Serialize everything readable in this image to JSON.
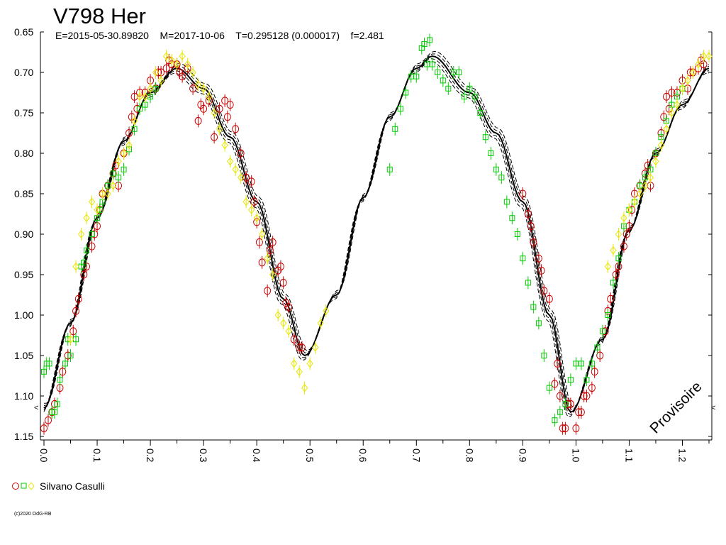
{
  "chart_data": {
    "type": "scatter",
    "title": "V798 Her",
    "subtitle": "E=2015-05-30.89820    M=2017-10-06    T=0.295128 (0.000017)    f=2.481",
    "xlabel": "",
    "ylabel": "",
    "xlim": [
      0.0,
      1.25
    ],
    "ylim": [
      1.15,
      0.65
    ],
    "y_inverted": true,
    "grid": false,
    "x_ticks": [
      "0.0",
      "0.1",
      "0.2",
      "0.3",
      "0.4",
      "0.5",
      "0.6",
      "0.7",
      "0.8",
      "0.9",
      "1.0",
      "1.1",
      "1.2"
    ],
    "y_ticks": [
      "0.65",
      "0.70",
      "0.75",
      "0.80",
      "0.85",
      "0.90",
      "0.95",
      "1.00",
      "1.05",
      "1.10",
      "1.15"
    ],
    "watermark": "Provisoire",
    "edge_marker": "<",
    "legend": {
      "placement": "bottom-left",
      "observer": "Silvano Casulli",
      "symbols": "○□◇"
    },
    "colors": {
      "red": "#cc0000",
      "green": "#00cc00",
      "yellow": "#e6e600",
      "model": "#000000"
    },
    "model_curve": {
      "description": "fitted light curve with dashed uncertainty envelope",
      "phase": [
        0.0,
        0.05,
        0.1,
        0.15,
        0.2,
        0.25,
        0.3,
        0.35,
        0.4,
        0.45,
        0.49,
        0.55,
        0.6,
        0.65,
        0.7,
        0.73,
        0.8,
        0.85,
        0.9,
        0.95,
        0.99,
        1.05,
        1.1,
        1.15,
        1.2,
        1.25
      ],
      "mag": [
        1.115,
        1.01,
        0.88,
        0.785,
        0.725,
        0.695,
        0.72,
        0.78,
        0.86,
        0.98,
        1.05,
        0.975,
        0.855,
        0.755,
        0.695,
        0.68,
        0.725,
        0.775,
        0.86,
        1.0,
        1.12,
        1.03,
        0.895,
        0.8,
        0.74,
        0.695
      ]
    },
    "series": [
      {
        "name": "red",
        "symbol": "circle",
        "color": "#cc0000",
        "x": [
          0.0,
          0.008,
          0.015,
          0.02,
          0.03,
          0.035,
          0.045,
          0.055,
          0.06,
          0.065,
          0.075,
          0.08,
          0.09,
          0.095,
          0.1,
          0.105,
          0.11,
          0.12,
          0.13,
          0.135,
          0.14,
          0.15,
          0.16,
          0.165,
          0.17,
          0.175,
          0.18,
          0.19,
          0.2,
          0.21,
          0.215,
          0.22,
          0.23,
          0.235,
          0.24,
          0.25,
          0.255,
          0.26,
          0.27,
          0.28,
          0.29,
          0.295,
          0.3,
          0.31,
          0.32,
          0.33,
          0.34,
          0.345,
          0.35,
          0.36,
          0.37,
          0.38,
          0.39,
          0.395,
          0.4,
          0.405,
          0.41,
          0.42,
          0.425,
          0.43,
          0.44,
          0.445,
          0.45,
          0.455,
          0.46,
          0.47,
          0.48,
          0.485,
          0.9,
          0.91,
          0.915,
          0.92,
          0.93,
          0.935,
          0.94,
          0.95,
          0.96,
          0.965,
          0.97,
          0.975,
          0.98,
          0.985,
          0.99,
          1.0,
          1.005,
          1.01,
          1.015,
          1.02,
          1.03,
          1.035,
          1.045,
          1.055,
          1.06,
          1.065,
          1.075,
          1.08,
          1.09,
          1.095,
          1.1,
          1.105,
          1.11,
          1.12,
          1.13,
          1.135,
          1.14,
          1.15,
          1.16,
          1.165,
          1.17,
          1.175,
          1.18,
          1.19,
          1.2,
          1.21,
          1.215,
          1.22,
          1.23,
          1.235,
          1.24
        ],
        "y": [
          1.14,
          1.13,
          1.12,
          1.11,
          1.09,
          1.07,
          1.05,
          1.02,
          0.995,
          0.98,
          0.95,
          0.94,
          0.915,
          0.9,
          0.89,
          0.87,
          0.85,
          0.84,
          0.825,
          0.815,
          0.84,
          0.8,
          0.775,
          0.755,
          0.73,
          0.745,
          0.725,
          0.725,
          0.71,
          0.72,
          0.7,
          0.7,
          0.695,
          0.685,
          0.69,
          0.69,
          0.7,
          0.705,
          0.695,
          0.72,
          0.76,
          0.74,
          0.745,
          0.735,
          0.78,
          0.745,
          0.735,
          0.755,
          0.74,
          0.77,
          0.8,
          0.83,
          0.835,
          0.86,
          0.885,
          0.91,
          0.935,
          0.97,
          0.92,
          0.91,
          0.945,
          0.94,
          0.96,
          0.985,
          0.99,
          1.03,
          1.04,
          1.04,
          0.85,
          0.875,
          0.89,
          0.91,
          0.93,
          0.945,
          0.97,
          0.98,
          1.085,
          1.06,
          1.1,
          1.14,
          1.14,
          1.11,
          1.11,
          1.14,
          1.12,
          1.12,
          1.1,
          1.1,
          1.09,
          1.07,
          1.05,
          1.02,
          0.995,
          0.98,
          0.95,
          0.94,
          0.915,
          0.9,
          0.89,
          0.87,
          0.85,
          0.84,
          0.825,
          0.815,
          0.84,
          0.8,
          0.775,
          0.755,
          0.73,
          0.745,
          0.725,
          0.725,
          0.71,
          0.72,
          0.7,
          0.7,
          0.695,
          0.685,
          0.69
        ]
      },
      {
        "name": "green",
        "symbol": "square",
        "color": "#00cc00",
        "x": [
          0.0,
          0.005,
          0.01,
          0.015,
          0.02,
          0.025,
          0.03,
          0.04,
          0.045,
          0.05,
          0.06,
          0.07,
          0.075,
          0.08,
          0.09,
          0.1,
          0.105,
          0.11,
          0.12,
          0.13,
          0.14,
          0.15,
          0.16,
          0.17,
          0.18,
          0.19,
          0.2,
          0.21,
          0.65,
          0.66,
          0.67,
          0.68,
          0.69,
          0.7,
          0.71,
          0.715,
          0.72,
          0.725,
          0.73,
          0.74,
          0.75,
          0.76,
          0.77,
          0.78,
          0.79,
          0.8,
          0.81,
          0.82,
          0.83,
          0.84,
          0.85,
          0.86,
          0.87,
          0.88,
          0.89,
          0.9,
          0.91,
          0.92,
          0.93,
          0.94,
          0.95,
          0.96,
          0.97,
          0.98,
          0.99,
          1.0,
          1.01,
          1.02,
          1.03,
          1.04,
          1.05,
          1.06,
          1.07,
          1.08,
          1.09,
          1.1,
          1.11,
          1.12,
          1.13,
          1.14,
          1.15,
          1.16,
          1.17,
          1.18,
          1.19,
          1.2
        ],
        "y": [
          1.07,
          1.06,
          1.06,
          1.12,
          1.12,
          1.11,
          1.08,
          1.06,
          1.03,
          1.05,
          1.03,
          0.94,
          0.935,
          0.92,
          0.9,
          0.88,
          0.87,
          0.86,
          0.84,
          0.825,
          0.83,
          0.82,
          0.795,
          0.77,
          0.745,
          0.74,
          0.73,
          0.72,
          0.82,
          0.77,
          0.745,
          0.725,
          0.705,
          0.705,
          0.67,
          0.665,
          0.69,
          0.66,
          0.69,
          0.7,
          0.71,
          0.72,
          0.7,
          0.7,
          0.73,
          0.72,
          0.73,
          0.75,
          0.78,
          0.8,
          0.82,
          0.83,
          0.86,
          0.88,
          0.9,
          0.93,
          0.96,
          0.99,
          1.01,
          1.05,
          1.09,
          1.13,
          1.12,
          1.11,
          1.08,
          1.06,
          1.06,
          1.08,
          1.06,
          1.04,
          1.02,
          1.0,
          0.96,
          0.93,
          0.89,
          0.87,
          0.86,
          0.84,
          0.83,
          0.82,
          0.8,
          0.78,
          0.76,
          0.74,
          0.73,
          0.72
        ]
      },
      {
        "name": "yellow",
        "symbol": "diamond",
        "color": "#e6e600",
        "x": [
          0.05,
          0.06,
          0.07,
          0.08,
          0.09,
          0.1,
          0.11,
          0.12,
          0.13,
          0.14,
          0.15,
          0.16,
          0.17,
          0.18,
          0.19,
          0.2,
          0.21,
          0.22,
          0.23,
          0.24,
          0.25,
          0.26,
          0.27,
          0.28,
          0.29,
          0.3,
          0.31,
          0.32,
          0.33,
          0.34,
          0.35,
          0.36,
          0.37,
          0.38,
          0.39,
          0.4,
          0.41,
          0.42,
          0.43,
          0.44,
          0.45,
          0.46,
          0.47,
          0.48,
          0.49,
          0.5,
          0.51,
          0.52,
          0.53,
          1.06,
          1.07,
          1.08,
          1.09,
          1.1,
          1.11,
          1.12,
          1.13,
          1.14,
          1.15,
          1.16,
          1.17,
          1.18,
          1.19,
          1.2,
          1.21,
          1.22,
          1.23,
          1.24,
          1.25
        ],
        "y": [
          1.03,
          0.94,
          0.9,
          0.88,
          0.86,
          0.87,
          0.85,
          0.85,
          0.84,
          0.81,
          0.8,
          0.79,
          0.76,
          0.73,
          0.73,
          0.72,
          0.7,
          0.71,
          0.68,
          0.685,
          0.69,
          0.68,
          0.69,
          0.7,
          0.715,
          0.72,
          0.73,
          0.75,
          0.77,
          0.79,
          0.81,
          0.82,
          0.83,
          0.86,
          0.87,
          0.88,
          0.9,
          0.93,
          0.95,
          1.0,
          1.01,
          1.02,
          1.06,
          1.07,
          1.09,
          1.06,
          1.04,
          1.01,
          0.995,
          0.94,
          0.92,
          0.9,
          0.88,
          0.87,
          0.86,
          0.85,
          0.84,
          0.83,
          0.81,
          0.79,
          0.77,
          0.75,
          0.74,
          0.72,
          0.71,
          0.7,
          0.69,
          0.68,
          0.68
        ]
      }
    ]
  },
  "copyright": "(c)2020 OdG-RB"
}
